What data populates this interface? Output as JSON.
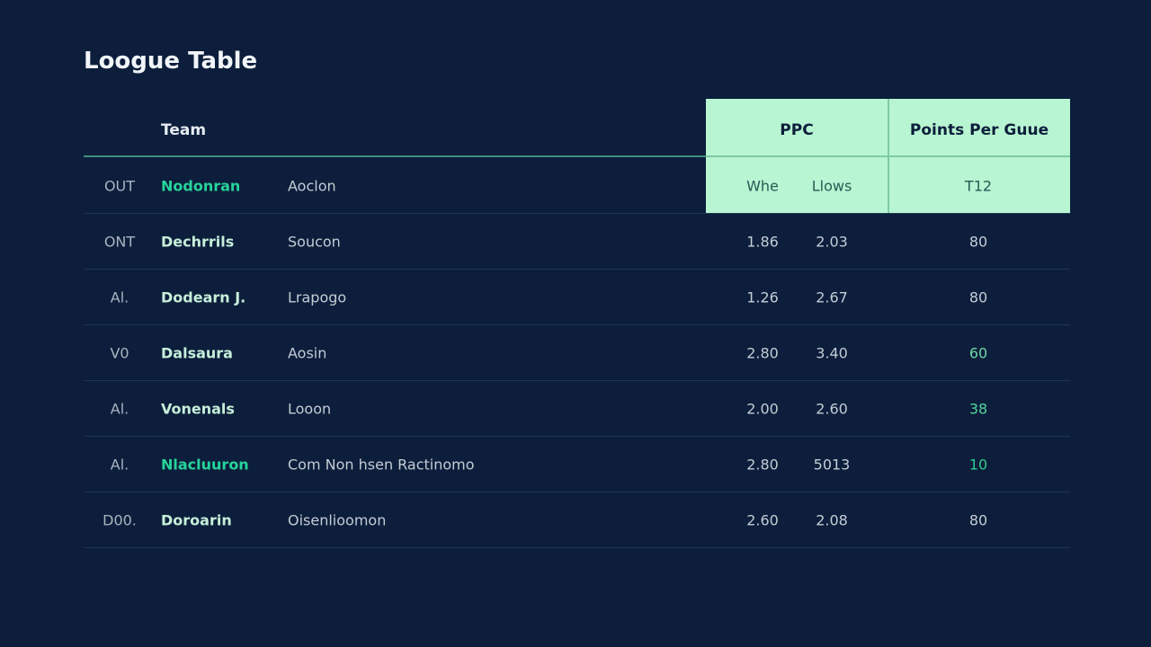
{
  "header": {
    "title": "Loogue Table"
  },
  "table": {
    "columns": {
      "team": "Team",
      "group": "PPC",
      "points": "Points Per Guue"
    },
    "rows": [
      [
        "OUT",
        "Nodonran",
        "Aoclon",
        "Whe",
        "Llows",
        "T12"
      ],
      [
        "ONT",
        "Dechrrils",
        "Soucon",
        "1.86",
        "2.03",
        "80"
      ],
      [
        "Al.",
        "Dodearn J.",
        "Lrapogo",
        "1.26",
        "2.67",
        "80"
      ],
      [
        "V0",
        "Dalsaura",
        "Aosin",
        "2.80",
        "3.40",
        "60"
      ],
      [
        "Al.",
        "Vonenals",
        "Looon",
        "2.00",
        "2.60",
        "38"
      ],
      [
        "Al.",
        "Nlacluuron",
        "Com Non hsen Ractinomo",
        "2.80",
        "5013",
        "10"
      ],
      [
        "D00.",
        "Doroarin",
        "Oisenlioomon",
        "2.60",
        "2.08",
        "80"
      ]
    ]
  }
}
